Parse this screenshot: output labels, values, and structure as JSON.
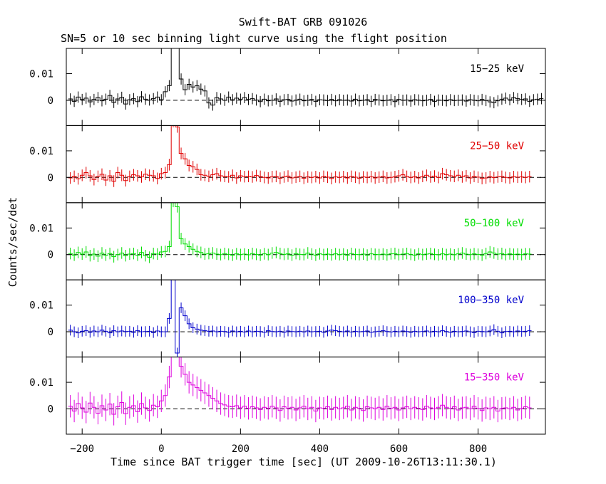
{
  "header": {
    "title": "Swift-BAT GRB 091026",
    "subtitle": "SN=5 or 10 sec binning light curve using the flight position"
  },
  "colors": {
    "band1": "#000000",
    "band2": "#e00000",
    "band3": "#00dd00",
    "band4": "#0000cc",
    "band5": "#dd00dd"
  },
  "chart_data": {
    "type": "line",
    "title": "Swift-BAT GRB 091026",
    "subtitle": "SN=5 or 10 sec binning light curve using the flight position",
    "xlabel": "Time since BAT trigger time [sec] (UT 2009-10-26T13:11:30.1)",
    "ylabel": "Counts/sec/det",
    "xlim": [
      -240,
      970
    ],
    "ylim": [
      -0.0095,
      0.0195
    ],
    "xticks": [
      -200,
      0,
      200,
      400,
      600,
      800
    ],
    "xtick_labels": [
      "−200",
      "0",
      "200",
      "400",
      "600",
      "800"
    ],
    "yticks": [
      0,
      0.01
    ],
    "ytick_labels": [
      "0",
      "0.01"
    ],
    "zero_line": "dashed",
    "grid": false,
    "x_start": -235,
    "bin_width": 10,
    "panels": [
      {
        "name": "15−25 keV",
        "color": "#000000",
        "error": 0.0021,
        "values": [
          0.0005,
          -0.0004,
          0.0012,
          0.0003,
          0.0008,
          -0.0006,
          0.0003,
          0.001,
          -0.0002,
          0.0004,
          0.0018,
          -0.0008,
          0.0005,
          0.0011,
          -0.0014,
          0.0002,
          0.0006,
          -0.0005,
          0.0013,
          0.0004,
          0.0001,
          0.0006,
          0.0012,
          0.0002,
          0.0032,
          0.0055,
          0.028,
          0.025,
          0.008,
          0.004,
          0.006,
          0.005,
          0.0055,
          0.0042,
          0.0035,
          -0.001,
          -0.0018,
          0.001,
          0.0005,
          0.0,
          0.0012,
          0.0002,
          0.0008,
          0.0004,
          0.001,
          0.0003,
          0.0006,
          0.0001,
          -0.0005,
          0.0004,
          -0.0002,
          0.0,
          0.0005,
          -0.0004,
          0.0002,
          0.0003,
          -0.0003,
          0.0001,
          0.0004,
          -0.0002,
          0.0,
          0.0003,
          -0.0004,
          0.0002,
          0.0001,
          -0.0001,
          0.0003,
          -0.0002,
          0.0002,
          0.0,
          0.0001,
          -0.0003,
          0.0004,
          -0.0002,
          0.0,
          0.0002,
          -0.0004,
          0.0003,
          0.0001,
          -0.0002,
          0.0,
          0.0002,
          -0.0005,
          0.0003,
          0.0,
          0.0001,
          -0.0003,
          0.0002,
          0.0001,
          -0.0002,
          0.0,
          0.0003,
          -0.0004,
          0.0001,
          0.0,
          -0.0002,
          0.0002,
          -0.0001,
          0.0,
          0.0001,
          -0.0003,
          0.0002,
          0.0,
          -0.0002,
          0.0003,
          -0.0001,
          -0.0006,
          -0.0009,
          -0.0002,
          0.0004,
          0.0008,
          0.0002,
          0.001,
          0.0006,
          0.0003,
          0.0005,
          -0.0004,
          0.0002,
          0.0004,
          0.0006
        ]
      },
      {
        "name": "25−50 keV",
        "color": "#e00000",
        "error": 0.0022,
        "values": [
          -0.0002,
          0.0004,
          -0.0005,
          0.0008,
          0.0018,
          0.0006,
          -0.0008,
          0.0004,
          0.0012,
          -0.001,
          0.0006,
          -0.0014,
          0.0018,
          0.0008,
          -0.0012,
          0.0004,
          0.001,
          0.0006,
          0.0002,
          0.0012,
          0.0008,
          0.0006,
          -0.0004,
          0.0014,
          0.0018,
          0.0048,
          0.021,
          0.019,
          0.009,
          0.007,
          0.0045,
          0.004,
          0.003,
          0.001,
          0.0008,
          0.0004,
          0.001,
          0.0014,
          0.0006,
          0.0004,
          0.0002,
          0.0008,
          -0.0002,
          0.0006,
          0.0003,
          0.0004,
          0.0002,
          0.0007,
          0.0004,
          0.0,
          -0.0002,
          0.0003,
          0.0004,
          -0.0003,
          0.0002,
          0.0005,
          -0.0002,
          0.0001,
          0.0004,
          -0.0003,
          0.0002,
          0.0,
          0.0003,
          -0.0002,
          0.0004,
          0.0001,
          -0.0004,
          0.0002,
          0.0,
          0.0003,
          -0.0002,
          0.0004,
          0.0001,
          -0.0003,
          0.0002,
          0.0,
          0.0003,
          -0.0002,
          0.0001,
          0.0004,
          -0.0002,
          0.0,
          0.0003,
          0.0006,
          0.001,
          0.0004,
          0.0,
          0.0003,
          -0.0002,
          0.0004,
          0.0008,
          0.0002,
          0.0005,
          0.0,
          0.0014,
          0.001,
          0.0006,
          0.0004,
          0.0008,
          0.0002,
          0.0006,
          -0.0002,
          0.0004,
          0.0001,
          -0.0004,
          -0.0002,
          0.0003,
          -0.0001,
          0.0002,
          0.0004,
          0.0,
          -0.0002,
          0.0003,
          0.0001,
          0.0002,
          0.0,
          0.0003
        ]
      },
      {
        "name": "50−100 keV",
        "color": "#00dd00",
        "error": 0.0022,
        "values": [
          0.0004,
          -0.0002,
          0.0008,
          0.0002,
          0.001,
          -0.0004,
          0.0002,
          -0.0006,
          0.0006,
          -0.0002,
          0.0004,
          -0.0008,
          0.0,
          0.0006,
          -0.0004,
          0.0002,
          0.0004,
          -0.0002,
          0.0008,
          -0.0004,
          -0.001,
          0.0004,
          0.0002,
          0.001,
          0.0012,
          0.003,
          0.02,
          0.018,
          0.006,
          0.004,
          0.003,
          0.002,
          0.0012,
          0.0008,
          0.0002,
          0.0004,
          0.0006,
          0.0002,
          0.0,
          0.0004,
          0.0001,
          -0.0002,
          0.0003,
          0.0,
          0.0002,
          -0.0001,
          0.0004,
          0.0001,
          -0.0002,
          0.0003,
          0.0,
          0.0006,
          0.0008,
          0.0004,
          0.0001,
          0.0003,
          -0.0002,
          0.0004,
          0.0001,
          0.0,
          0.0006,
          0.0002,
          -0.0002,
          0.0003,
          0.0,
          0.0002,
          -0.0001,
          0.0003,
          0.0,
          0.0002,
          -0.0002,
          0.0004,
          0.0001,
          0.0,
          0.0002,
          -0.0002,
          0.0003,
          0.0001,
          0.0,
          0.0002,
          -0.0001,
          0.0003,
          0.0004,
          0.0,
          0.0002,
          0.0004,
          0.0001,
          -0.0002,
          0.0003,
          0.0,
          0.0002,
          0.0004,
          0.0001,
          -0.0001,
          0.0003,
          0.0,
          0.0002,
          -0.0001,
          0.0003,
          0.0006,
          0.0002,
          0.0,
          0.0003,
          0.0001,
          -0.0002,
          0.0004,
          0.001,
          0.0006,
          0.0002,
          0.0004,
          0.0,
          0.0003,
          0.0001,
          0.0002,
          0.0,
          0.0003,
          0.0002
        ]
      },
      {
        "name": "100−350 keV",
        "color": "#0000cc",
        "error": 0.002,
        "values": [
          0.0006,
          0.0,
          -0.0004,
          0.0002,
          0.0004,
          -0.0002,
          0.0003,
          0.0,
          0.0006,
          0.0002,
          -0.0004,
          0.0004,
          0.0,
          0.0003,
          0.0001,
          0.0002,
          -0.0002,
          0.0004,
          0.0,
          0.0001,
          0.0002,
          -0.0003,
          0.0003,
          0.0,
          0.0,
          0.005,
          0.023,
          -0.008,
          0.009,
          0.006,
          0.003,
          0.0015,
          0.001,
          0.0006,
          0.0004,
          0.0002,
          0.0003,
          0.0,
          0.0002,
          0.0001,
          -0.0002,
          0.0003,
          0.0,
          0.0002,
          -0.0001,
          0.0003,
          0.0,
          0.0002,
          0.0001,
          -0.0002,
          0.0004,
          0.0001,
          0.0,
          0.0002,
          -0.0002,
          0.0003,
          0.0001,
          0.0,
          0.0002,
          -0.0001,
          0.0003,
          0.0,
          0.0001,
          0.0002,
          -0.0002,
          0.0003,
          0.0006,
          0.0004,
          0.0002,
          0.0,
          0.0003,
          -0.0001,
          0.0002,
          0.0,
          0.0001,
          0.0003,
          -0.0002,
          0.0,
          0.0002,
          0.0004,
          0.0001,
          -0.0001,
          0.0002,
          0.0,
          0.0003,
          0.0001,
          -0.0002,
          0.0002,
          0.0,
          0.0001,
          0.0003,
          -0.0001,
          0.0002,
          0.0,
          0.0004,
          0.0001,
          -0.0002,
          0.0002,
          0.0,
          0.0001,
          0.0003,
          0.0,
          -0.0003,
          0.0002,
          0.0001,
          0.0,
          0.0003,
          0.0008,
          0.0002,
          -0.0004,
          0.0001,
          0.0002,
          0.0,
          0.0003,
          0.0001,
          0.0002,
          0.0004
        ]
      },
      {
        "name": "15−350 keV",
        "color": "#dd00dd",
        "error": 0.0042,
        "values": [
          0.001,
          -0.0008,
          0.002,
          0.0004,
          -0.0012,
          0.0022,
          0.0006,
          -0.0016,
          0.0012,
          -0.0004,
          0.0018,
          -0.002,
          0.0008,
          0.0024,
          -0.0018,
          0.0006,
          0.0012,
          -0.001,
          0.002,
          0.0004,
          -0.0006,
          0.0014,
          0.0008,
          0.003,
          0.005,
          0.012,
          0.035,
          0.03,
          0.016,
          0.013,
          0.01,
          0.009,
          0.008,
          0.007,
          0.006,
          0.005,
          0.004,
          0.003,
          0.002,
          0.0015,
          0.001,
          0.0008,
          0.0012,
          0.0004,
          0.001,
          0.0002,
          0.0008,
          0.0004,
          -0.0002,
          0.0006,
          0.0002,
          0.001,
          0.0004,
          -0.0006,
          0.0008,
          0.0002,
          0.0006,
          -0.0004,
          0.0004,
          0.001,
          0.0,
          0.0006,
          -0.0008,
          0.0004,
          0.0002,
          0.0008,
          -0.0002,
          0.0006,
          0.0,
          0.0004,
          0.001,
          -0.0004,
          0.0006,
          0.0002,
          -0.0006,
          0.0008,
          0.0004,
          0.0,
          0.0006,
          -0.0002,
          0.001,
          0.0002,
          0.0006,
          -0.0004,
          0.0004,
          0.0008,
          0.0,
          0.0006,
          0.0002,
          -0.0002,
          0.001,
          0.0004,
          0.0,
          0.0006,
          0.0014,
          0.0006,
          0.0002,
          0.0008,
          -0.0004,
          0.0004,
          0.0006,
          0.0,
          0.001,
          0.0002,
          -0.0006,
          0.0004,
          0.0,
          0.0006,
          -0.0008,
          0.0002,
          0.0004,
          0.0,
          0.0006,
          -0.0004,
          0.0002,
          0.0008,
          0.0004
        ]
      }
    ]
  }
}
